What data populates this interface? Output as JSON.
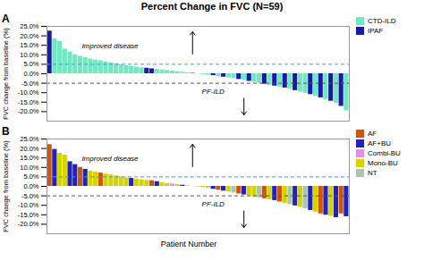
{
  "chart_data": [
    {
      "type": "bar",
      "title": "Percent Change in FVC (N=59)",
      "panel_label": "A",
      "ylabel": "FVC change from baseline (%)",
      "categories": [
        null,
        null,
        null,
        null,
        null,
        null,
        null,
        null,
        null,
        null,
        null,
        null,
        null,
        null,
        null,
        null,
        null,
        null,
        null,
        null,
        null,
        null,
        null,
        null,
        null,
        null,
        null,
        null,
        null,
        null,
        null,
        null,
        null,
        null,
        null,
        null,
        null,
        null,
        null,
        null,
        null,
        null,
        null,
        null,
        null,
        null,
        null,
        null,
        null,
        null,
        null,
        null,
        null,
        null,
        null,
        null,
        null,
        null,
        null
      ],
      "values": [
        22.5,
        18.5,
        17.0,
        13.0,
        11.5,
        10.0,
        9.2,
        8.5,
        7.8,
        7.2,
        6.8,
        6.3,
        5.8,
        5.3,
        4.8,
        4.3,
        3.9,
        3.5,
        3.2,
        2.9,
        2.6,
        2.3,
        2.0,
        1.7,
        1.4,
        1.1,
        0.8,
        0.5,
        0.2,
        -0.1,
        -0.4,
        -0.7,
        -1.0,
        -1.4,
        -1.8,
        -2.2,
        -2.6,
        -3.0,
        -3.5,
        -4.0,
        -4.5,
        -5.0,
        -5.5,
        -6.0,
        -6.5,
        -7.0,
        -7.5,
        -8.2,
        -8.9,
        -9.6,
        -10.3,
        -11.0,
        -11.8,
        -12.7,
        -13.6,
        -14.5,
        -15.5,
        -17.2,
        -19.5
      ],
      "colors": [
        "#1a1aaa",
        "#70e8c0",
        "#70e8c0",
        "#70e8c0",
        "#70e8c0",
        "#70e8c0",
        "#70e8c0",
        "#70e8c0",
        "#70e8c0",
        "#70e8c0",
        "#70e8c0",
        "#70e8c0",
        "#70e8c0",
        "#70e8c0",
        "#70e8c0",
        "#70e8c0",
        "#70e8c0",
        "#70e8c0",
        "#70e8c0",
        "#1a1aaa",
        "#1a1aaa",
        "#70e8c0",
        "#70e8c0",
        "#70e8c0",
        "#70e8c0",
        "#70e8c0",
        "#70e8c0",
        "#70e8c0",
        "#1a1aaa",
        "#70e8c0",
        "#70e8c0",
        "#70e8c0",
        "#1a1aaa",
        "#70e8c0",
        "#1a1aaa",
        "#70e8c0",
        "#70e8c0",
        "#1a1aaa",
        "#70e8c0",
        "#1a1aaa",
        "#70e8c0",
        "#70e8c0",
        "#1a1aaa",
        "#70e8c0",
        "#1a1aaa",
        "#70e8c0",
        "#1a1aaa",
        "#70e8c0",
        "#1a1aaa",
        "#70e8c0",
        "#70e8c0",
        "#1a1aaa",
        "#70e8c0",
        "#1a1aaa",
        "#70e8c0",
        "#1a1aaa",
        "#70e8c0",
        "#1a1aaa",
        "#70e8c0"
      ],
      "ylim": [
        -25,
        25
      ],
      "yticks": [
        {
          "value": -20,
          "label": "-20.0%"
        },
        {
          "value": -15,
          "label": "-15.0%"
        },
        {
          "value": -10,
          "label": "-10.0%"
        },
        {
          "value": -5,
          "label": "-5.0%"
        },
        {
          "value": 0,
          "label": "0.0%"
        },
        {
          "value": 5,
          "label": "5.0%"
        },
        {
          "value": 10,
          "label": "10.0%"
        },
        {
          "value": 15,
          "label": "15.0%"
        },
        {
          "value": 20,
          "label": "20.0%"
        },
        {
          "value": 25,
          "label": "25.0%"
        }
      ],
      "tick_labels": "y",
      "grid": false,
      "legend": "upper right",
      "legend_entries": [
        {
          "name": "CTD-ILD",
          "color": "#70e8c0"
        },
        {
          "name": "IPAF",
          "color": "#1a1aaa"
        }
      ],
      "reference_lines": [
        {
          "value": 5.0,
          "color": "#3399ff",
          "line_style": "dashed"
        },
        {
          "value": -5.0,
          "color": "#555555",
          "line_style": "dashed"
        }
      ],
      "annotations": [
        {
          "text": "Improved disease",
          "arrow": "up"
        },
        {
          "text": "PF-ILD",
          "arrow": "down"
        }
      ]
    },
    {
      "type": "bar",
      "panel_label": "B",
      "ylabel": "FVC change from baseline (%)",
      "xlabel": "Patient Number",
      "categories": [
        null,
        null,
        null,
        null,
        null,
        null,
        null,
        null,
        null,
        null,
        null,
        null,
        null,
        null,
        null,
        null,
        null,
        null,
        null,
        null,
        null,
        null,
        null,
        null,
        null,
        null,
        null,
        null,
        null,
        null,
        null,
        null,
        null,
        null,
        null,
        null,
        null,
        null,
        null,
        null,
        null,
        null,
        null,
        null,
        null,
        null,
        null,
        null,
        null,
        null,
        null,
        null,
        null,
        null,
        null,
        null,
        null,
        null,
        null
      ],
      "values": [
        22.0,
        19.5,
        17.5,
        16.5,
        13.0,
        11.5,
        10.0,
        9.0,
        8.0,
        7.5,
        7.0,
        6.5,
        6.0,
        5.5,
        5.0,
        4.5,
        4.2,
        3.8,
        3.5,
        3.2,
        3.0,
        2.5,
        2.0,
        1.5,
        1.2,
        0.9,
        0.6,
        0.3,
        0.0,
        -0.3,
        -0.6,
        -1.0,
        -1.5,
        -2.0,
        -2.5,
        -3.0,
        -3.5,
        -4.0,
        -4.5,
        -5.0,
        -5.5,
        -6.0,
        -6.5,
        -7.0,
        -7.5,
        -8.2,
        -8.9,
        -9.6,
        -10.3,
        -11.0,
        -11.8,
        -12.7,
        -13.6,
        -14.5,
        -15.2,
        -15.8,
        -16.5,
        -14.5,
        -16.0
      ],
      "colors": [
        "#d45500",
        "#2222bb",
        "#d4d400",
        "#d4d400",
        "#2222bb",
        "#2222bb",
        "#d45500",
        "#2222bb",
        "#d4d400",
        "#d4d400",
        "#d45500",
        "#d4d400",
        "#d4d400",
        "#d4d400",
        "#d4d400",
        "#d4d400",
        "#2222bb",
        "#d4d400",
        "#d4d400",
        "#d4d400",
        "#d45500",
        "#2222bb",
        "#d4d400",
        "#d4d400",
        "#ee88ee",
        "#d4d400",
        "#2222bb",
        "#d4d400",
        "#ee88ee",
        "#a8c8a8",
        "#d4d400",
        "#a8c8a8",
        "#2222bb",
        "#d45500",
        "#2222bb",
        "#d4d400",
        "#a8c8a8",
        "#d45500",
        "#2222bb",
        "#d4d400",
        "#d4d400",
        "#a8c8a8",
        "#d45500",
        "#d4d400",
        "#2222bb",
        "#d45500",
        "#d4d400",
        "#a8c8a8",
        "#2222bb",
        "#d4d400",
        "#a8c8a8",
        "#2222bb",
        "#d4d400",
        "#d45500",
        "#2222bb",
        "#d4d400",
        "#2222bb",
        "#d45500",
        "#2222bb"
      ],
      "ylim": [
        -25,
        25
      ],
      "yticks": [
        {
          "value": -20,
          "label": "-20.0%"
        },
        {
          "value": -15,
          "label": "-15.0%"
        },
        {
          "value": -10,
          "label": "-10.0%"
        },
        {
          "value": -5,
          "label": "-5.0%"
        },
        {
          "value": 0,
          "label": "0.0%"
        },
        {
          "value": 5,
          "label": "5.0%"
        },
        {
          "value": 10,
          "label": "10.0%"
        },
        {
          "value": 15,
          "label": "15.0%"
        },
        {
          "value": 20,
          "label": "20.0%"
        },
        {
          "value": 25,
          "label": "25.0%"
        }
      ],
      "tick_labels": "y",
      "grid": false,
      "legend": "upper right",
      "legend_entries": [
        {
          "name": "AF",
          "color": "#d45500"
        },
        {
          "name": "AF+BU",
          "color": "#2222bb"
        },
        {
          "name": "Combi-BU",
          "color": "#ee88ee"
        },
        {
          "name": "Mono-BU",
          "color": "#d4d400"
        },
        {
          "name": "NT",
          "color": "#a8c8a8"
        }
      ],
      "reference_lines": [
        {
          "value": 5.0,
          "color": "#3399ff",
          "line_style": "dashed"
        },
        {
          "value": -5.0,
          "color": "#555555",
          "line_style": "dashed"
        }
      ],
      "annotations": [
        {
          "text": "Improved disease",
          "arrow": "up"
        },
        {
          "text": "PF-ILD",
          "arrow": "down"
        }
      ]
    }
  ]
}
